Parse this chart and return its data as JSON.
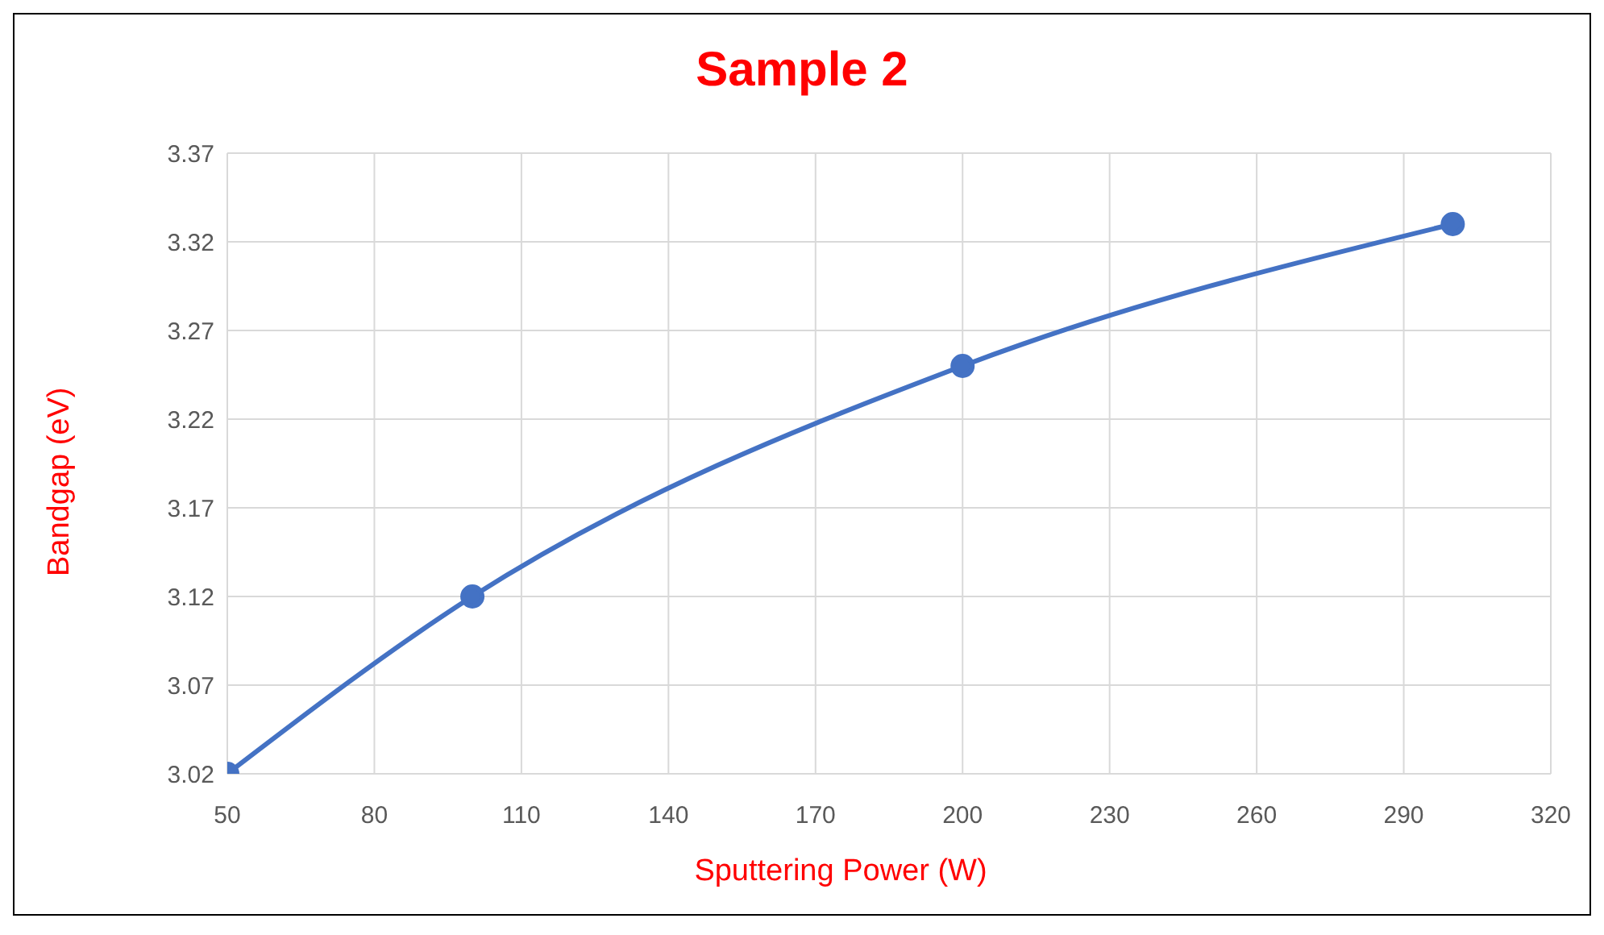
{
  "chart_data": {
    "type": "line",
    "title": "Sample 2",
    "xlabel": "Sputtering Power (W)",
    "ylabel": "Bandgap (eV)",
    "x": [
      50,
      100,
      200,
      300
    ],
    "series": [
      {
        "color": "#4472c4",
        "values": [
          3.02,
          3.12,
          3.25,
          3.33
        ]
      }
    ],
    "xlim": [
      50,
      320
    ],
    "xticks": [
      50,
      80,
      110,
      140,
      170,
      200,
      230,
      260,
      290,
      320
    ],
    "ylim": [
      3.02,
      3.37
    ],
    "yticks": [
      3.02,
      3.07,
      3.12,
      3.17,
      3.22,
      3.27,
      3.32,
      3.37
    ],
    "grid": true,
    "marker": "circle",
    "line_style": "solid",
    "legend": false
  }
}
